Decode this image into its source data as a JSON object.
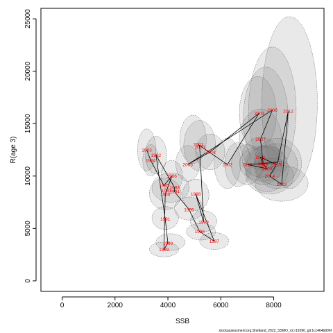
{
  "chart_data": {
    "type": "scatter",
    "xlabel": "SSB",
    "ylabel": "R(age 3)",
    "xlim": [
      -800,
      9900
    ],
    "ylim": [
      -1000,
      26000
    ],
    "x_ticks": [
      0,
      2000,
      4000,
      6000,
      8000
    ],
    "y_ticks": [
      0,
      5000,
      10000,
      15000,
      20000,
      25000
    ],
    "grid": false,
    "points": [
      {
        "year": "1983",
        "x": 3200,
        "y": 12500
      },
      {
        "year": "1984",
        "x": 3350,
        "y": 11500
      },
      {
        "year": "1985",
        "x": 3850,
        "y": 9100
      },
      {
        "year": "1986",
        "x": 4150,
        "y": 10000
      },
      {
        "year": "1987",
        "x": 3950,
        "y": 8600
      },
      {
        "year": "1988",
        "x": 3900,
        "y": 8300
      },
      {
        "year": "1989",
        "x": 3850,
        "y": 3000
      },
      {
        "year": "1990",
        "x": 4000,
        "y": 3600
      },
      {
        "year": "1991",
        "x": 3900,
        "y": 5900
      },
      {
        "year": "1992",
        "x": 3550,
        "y": 12000
      },
      {
        "year": "1993",
        "x": 4250,
        "y": 8900
      },
      {
        "year": "1994",
        "x": 4250,
        "y": 8500
      },
      {
        "year": "1995",
        "x": 4800,
        "y": 6800
      },
      {
        "year": "1996",
        "x": 5200,
        "y": 4700
      },
      {
        "year": "1997",
        "x": 5750,
        "y": 3800
      },
      {
        "year": "1998",
        "x": 5050,
        "y": 8300
      },
      {
        "year": "1999",
        "x": 5350,
        "y": 5600
      },
      {
        "year": "2000",
        "x": 5200,
        "y": 12800
      },
      {
        "year": "2001",
        "x": 5150,
        "y": 13000
      },
      {
        "year": "2002",
        "x": 6250,
        "y": 11100
      },
      {
        "year": "2003",
        "x": 7450,
        "y": 16000
      },
      {
        "year": "2004",
        "x": 5600,
        "y": 12300
      },
      {
        "year": "2005",
        "x": 4750,
        "y": 11100
      },
      {
        "year": "2006",
        "x": 7950,
        "y": 16300
      },
      {
        "year": "2007",
        "x": 7500,
        "y": 13500
      },
      {
        "year": "2008",
        "x": 7600,
        "y": 11200
      },
      {
        "year": "2009",
        "x": 7750,
        "y": 10700
      },
      {
        "year": "2010",
        "x": 7000,
        "y": 11100
      },
      {
        "year": "2011",
        "x": 8150,
        "y": 11300
      },
      {
        "year": "2012",
        "x": 8550,
        "y": 16200
      },
      {
        "year": "2013",
        "x": 8300,
        "y": 9200
      },
      {
        "year": "2014",
        "x": 7850,
        "y": 10000
      },
      {
        "year": "2015",
        "x": 8100,
        "y": 11100
      },
      {
        "year": "2016",
        "x": 7500,
        "y": 11800
      },
      {
        "year": "2017",
        "x": 7600,
        "y": 11000
      }
    ],
    "uncertainty_ellipses": [
      {
        "x": 3200,
        "y": 12500,
        "sx": 350,
        "sy": 2000
      },
      {
        "x": 3350,
        "y": 11500,
        "sx": 300,
        "sy": 1500
      },
      {
        "x": 3550,
        "y": 12000,
        "sx": 400,
        "sy": 1800
      },
      {
        "x": 3900,
        "y": 8300,
        "sx": 600,
        "sy": 1500
      },
      {
        "x": 4150,
        "y": 10000,
        "sx": 400,
        "sy": 1500
      },
      {
        "x": 4100,
        "y": 8900,
        "sx": 700,
        "sy": 1400
      },
      {
        "x": 3850,
        "y": 3000,
        "sx": 550,
        "sy": 700
      },
      {
        "x": 4100,
        "y": 3700,
        "sx": 550,
        "sy": 800
      },
      {
        "x": 3900,
        "y": 6000,
        "sx": 500,
        "sy": 1100
      },
      {
        "x": 4800,
        "y": 6900,
        "sx": 550,
        "sy": 1100
      },
      {
        "x": 5250,
        "y": 4700,
        "sx": 550,
        "sy": 800
      },
      {
        "x": 5750,
        "y": 3800,
        "sx": 550,
        "sy": 800
      },
      {
        "x": 5050,
        "y": 8200,
        "sx": 500,
        "sy": 1500
      },
      {
        "x": 5350,
        "y": 5700,
        "sx": 500,
        "sy": 1000
      },
      {
        "x": 4950,
        "y": 13500,
        "sx": 500,
        "sy": 2300
      },
      {
        "x": 5200,
        "y": 12900,
        "sx": 600,
        "sy": 2400
      },
      {
        "x": 5600,
        "y": 12300,
        "sx": 550,
        "sy": 1700
      },
      {
        "x": 4750,
        "y": 11200,
        "sx": 450,
        "sy": 1700
      },
      {
        "x": 6250,
        "y": 11200,
        "sx": 500,
        "sy": 2400
      },
      {
        "x": 6650,
        "y": 11100,
        "sx": 500,
        "sy": 2100
      },
      {
        "x": 7400,
        "y": 16000,
        "sx": 700,
        "sy": 3500
      },
      {
        "x": 7950,
        "y": 16300,
        "sx": 900,
        "sy": 6000
      },
      {
        "x": 7700,
        "y": 15500,
        "sx": 850,
        "sy": 4900
      },
      {
        "x": 8600,
        "y": 17000,
        "sx": 1050,
        "sy": 8200
      },
      {
        "x": 7500,
        "y": 13500,
        "sx": 800,
        "sy": 2900
      },
      {
        "x": 7600,
        "y": 11200,
        "sx": 900,
        "sy": 1700
      },
      {
        "x": 7750,
        "y": 10700,
        "sx": 800,
        "sy": 2200
      },
      {
        "x": 7000,
        "y": 11100,
        "sx": 600,
        "sy": 1900
      },
      {
        "x": 8150,
        "y": 11200,
        "sx": 900,
        "sy": 2400
      },
      {
        "x": 8300,
        "y": 9300,
        "sx": 1000,
        "sy": 1700
      },
      {
        "x": 7850,
        "y": 10000,
        "sx": 900,
        "sy": 1700
      },
      {
        "x": 8100,
        "y": 11100,
        "sx": 800,
        "sy": 2000
      },
      {
        "x": 7500,
        "y": 11800,
        "sx": 700,
        "sy": 1900
      },
      {
        "x": 7600,
        "y": 11000,
        "sx": 700,
        "sy": 1800
      }
    ]
  },
  "footer_text": "stockassessment.org,Shetland_2022_SSMO_v2,r19390_git:1cc464b806f"
}
